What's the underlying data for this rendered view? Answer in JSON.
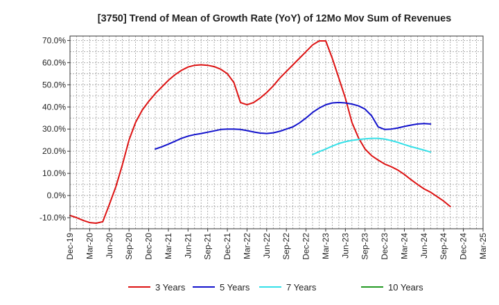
{
  "chart_data": {
    "type": "line",
    "title": "[3750]  Trend of Mean of Growth Rate (YoY) of 12Mo Mov Sum of Revenues",
    "xlabel": "",
    "ylabel": "",
    "ylim": [
      -15,
      72
    ],
    "y_ticks": [
      {
        "value": 70,
        "label": "70.0%"
      },
      {
        "value": 60,
        "label": "60.0%"
      },
      {
        "value": 50,
        "label": "50.0%"
      },
      {
        "value": 40,
        "label": "40.0%"
      },
      {
        "value": 30,
        "label": "30.0%"
      },
      {
        "value": 20,
        "label": "20.0%"
      },
      {
        "value": 10,
        "label": "10.0%"
      },
      {
        "value": 0,
        "label": "0.0%"
      },
      {
        "value": -10,
        "label": "-10.0%"
      }
    ],
    "x_ticks": [
      "Dec-19",
      "Mar-20",
      "Jun-20",
      "Sep-20",
      "Dec-20",
      "Mar-21",
      "Jun-21",
      "Sep-21",
      "Dec-21",
      "Mar-22",
      "Jun-22",
      "Sep-22",
      "Dec-22",
      "Mar-23",
      "Jun-23",
      "Sep-23",
      "Dec-23",
      "Mar-24",
      "Jun-24",
      "Sep-24",
      "Dec-24",
      "Mar-25"
    ],
    "grid": true,
    "legend_position": "bottom",
    "series": [
      {
        "name": "3 Years",
        "color": "#dd1111",
        "points": [
          [
            0,
            -9
          ],
          [
            1,
            -10
          ],
          [
            2,
            -11.2
          ],
          [
            3,
            -12.2
          ],
          [
            4,
            -12.5
          ],
          [
            5,
            -11.8
          ],
          [
            6,
            -4
          ],
          [
            7,
            4
          ],
          [
            8,
            14
          ],
          [
            9,
            25
          ],
          [
            10,
            33
          ],
          [
            11,
            38.5
          ],
          [
            12,
            42.5
          ],
          [
            13,
            46
          ],
          [
            14,
            49
          ],
          [
            15,
            52
          ],
          [
            16,
            54.5
          ],
          [
            17,
            56.5
          ],
          [
            18,
            58
          ],
          [
            19,
            58.8
          ],
          [
            20,
            59
          ],
          [
            21,
            58.8
          ],
          [
            22,
            58.2
          ],
          [
            23,
            57
          ],
          [
            24,
            55
          ],
          [
            25,
            51
          ],
          [
            26,
            42
          ],
          [
            27,
            41
          ],
          [
            28,
            42
          ],
          [
            29,
            44
          ],
          [
            30,
            46.5
          ],
          [
            31,
            49.5
          ],
          [
            32,
            53
          ],
          [
            33,
            56
          ],
          [
            34,
            59
          ],
          [
            35,
            62
          ],
          [
            36,
            65
          ],
          [
            37,
            68
          ],
          [
            38,
            69.8
          ],
          [
            39,
            69.8
          ],
          [
            40,
            62
          ],
          [
            41,
            53
          ],
          [
            42,
            44
          ],
          [
            43,
            33
          ],
          [
            44,
            26
          ],
          [
            45,
            21
          ],
          [
            46,
            18
          ],
          [
            47,
            16
          ],
          [
            48,
            14.2
          ],
          [
            49,
            13
          ],
          [
            50,
            11.5
          ],
          [
            51,
            9.5
          ],
          [
            52,
            7.2
          ],
          [
            53,
            5
          ],
          [
            54,
            3
          ],
          [
            55,
            1.5
          ],
          [
            56,
            -0.5
          ],
          [
            57,
            -2.5
          ],
          [
            58,
            -5
          ]
        ]
      },
      {
        "name": "5 Years",
        "color": "#1111cc",
        "points": [
          [
            13,
            21
          ],
          [
            14,
            22
          ],
          [
            15,
            23.2
          ],
          [
            16,
            24.5
          ],
          [
            17,
            25.8
          ],
          [
            18,
            26.8
          ],
          [
            19,
            27.5
          ],
          [
            20,
            28
          ],
          [
            21,
            28.6
          ],
          [
            22,
            29.2
          ],
          [
            23,
            29.8
          ],
          [
            24,
            30
          ],
          [
            25,
            30
          ],
          [
            26,
            29.8
          ],
          [
            27,
            29.3
          ],
          [
            28,
            28.7
          ],
          [
            29,
            28.2
          ],
          [
            30,
            28
          ],
          [
            31,
            28.3
          ],
          [
            32,
            29
          ],
          [
            33,
            30
          ],
          [
            34,
            31
          ],
          [
            35,
            32.8
          ],
          [
            36,
            35
          ],
          [
            37,
            37.5
          ],
          [
            38,
            39.5
          ],
          [
            39,
            41
          ],
          [
            40,
            41.8
          ],
          [
            41,
            42
          ],
          [
            42,
            41.8
          ],
          [
            43,
            41.3
          ],
          [
            44,
            40.5
          ],
          [
            45,
            39
          ],
          [
            46,
            36
          ],
          [
            47,
            31
          ],
          [
            48,
            29.8
          ],
          [
            49,
            30
          ],
          [
            50,
            30.5
          ],
          [
            51,
            31.2
          ],
          [
            52,
            31.8
          ],
          [
            53,
            32.3
          ],
          [
            54,
            32.5
          ],
          [
            55,
            32.3
          ]
        ]
      },
      {
        "name": "7 Years",
        "color": "#33e0e8",
        "points": [
          [
            37,
            18.5
          ],
          [
            38,
            19.8
          ],
          [
            39,
            21
          ],
          [
            40,
            22.3
          ],
          [
            41,
            23.5
          ],
          [
            42,
            24.3
          ],
          [
            43,
            24.9
          ],
          [
            44,
            25.3
          ],
          [
            45,
            25.6
          ],
          [
            46,
            25.8
          ],
          [
            47,
            25.8
          ],
          [
            48,
            25.5
          ],
          [
            49,
            24.8
          ],
          [
            50,
            24
          ],
          [
            51,
            23
          ],
          [
            52,
            22.1
          ],
          [
            53,
            21.3
          ],
          [
            54,
            20.5
          ],
          [
            55,
            19.6
          ]
        ]
      },
      {
        "name": "10 Years",
        "color": "#229922",
        "points": []
      }
    ]
  }
}
